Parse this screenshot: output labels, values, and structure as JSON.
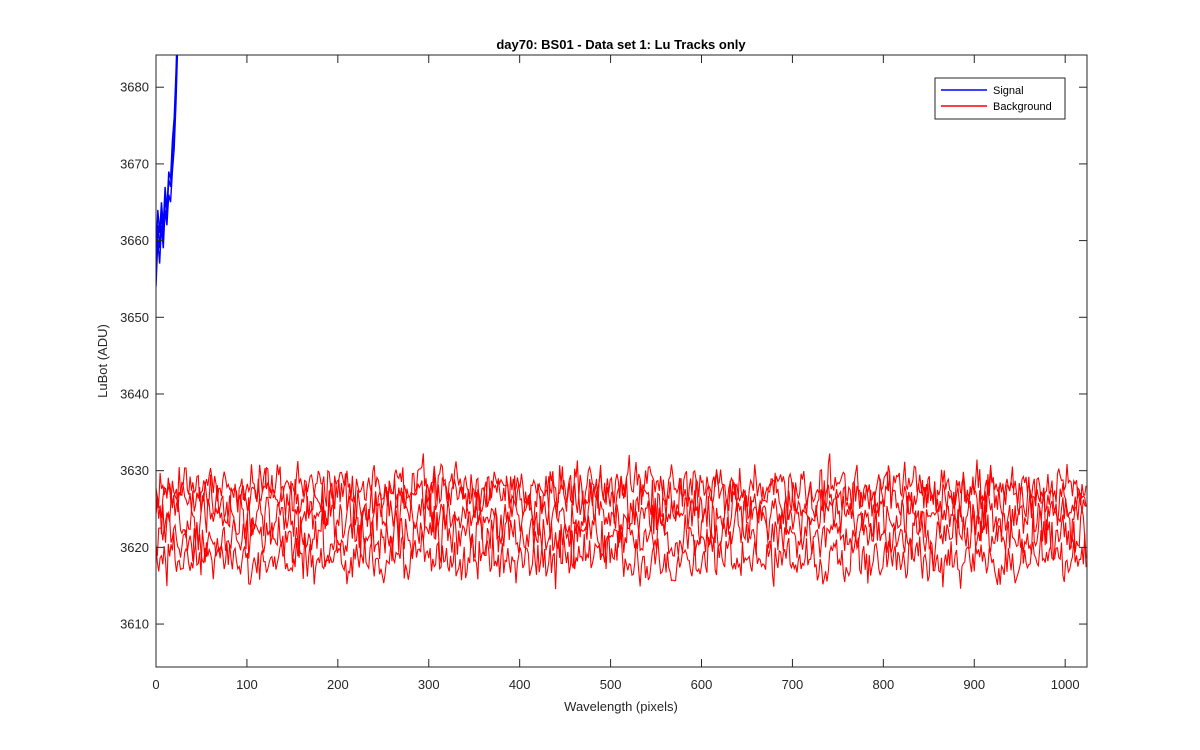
{
  "chart_data": {
    "type": "line",
    "title": "day70: BS01 - Data set 1: Lu Tracks only",
    "xlabel": "Wavelength (pixels)",
    "ylabel": "LuBot (ADU)",
    "xlim": [
      0,
      1024
    ],
    "ylim": [
      3604.4,
      3684.2
    ],
    "xticks": [
      0,
      100,
      200,
      300,
      400,
      500,
      600,
      700,
      800,
      900,
      1000
    ],
    "yticks": [
      3610,
      3620,
      3630,
      3640,
      3650,
      3660,
      3670,
      3680
    ],
    "grid": false,
    "legend_position": "top-right",
    "series": [
      {
        "name": "Signal",
        "color": "#0000ff",
        "traces": [
          {
            "x": [
              0,
              2,
              4,
              6,
              8,
              10,
              12,
              14,
              16,
              18,
              20,
              22,
              24
            ],
            "y": [
              3654,
              3660,
              3657,
              3662,
              3659,
              3664,
              3662,
              3666,
              3665,
              3669,
              3672,
              3678,
              3686
            ]
          },
          {
            "x": [
              0,
              2,
              4,
              6,
              8,
              10,
              12,
              14,
              16,
              18,
              20,
              22,
              24
            ],
            "y": [
              3656,
              3662,
              3659,
              3664,
              3660,
              3666,
              3663,
              3668,
              3667,
              3671,
              3674,
              3680,
              3688
            ]
          },
          {
            "x": [
              0,
              2,
              4,
              6,
              8,
              10,
              12,
              14,
              16,
              18,
              20,
              22,
              24
            ],
            "y": [
              3658,
              3664,
              3661,
              3665,
              3662,
              3667,
              3664,
              3669,
              3668,
              3673,
              3676,
              3682,
              3690
            ]
          }
        ]
      },
      {
        "name": "Background",
        "color": "#ff0000",
        "traces": [
          {
            "x_start": 0,
            "x_end": 1024,
            "level": 3618.5,
            "noise": 1.6
          },
          {
            "x_start": 0,
            "x_end": 1024,
            "level": 3621.5,
            "noise": 1.6
          },
          {
            "x_start": 0,
            "x_end": 1024,
            "level": 3624.0,
            "noise": 1.6
          },
          {
            "x_start": 0,
            "x_end": 1024,
            "level": 3626.5,
            "noise": 1.6
          },
          {
            "x_start": 0,
            "x_end": 1024,
            "level": 3628.0,
            "noise": 1.4
          }
        ]
      }
    ]
  }
}
